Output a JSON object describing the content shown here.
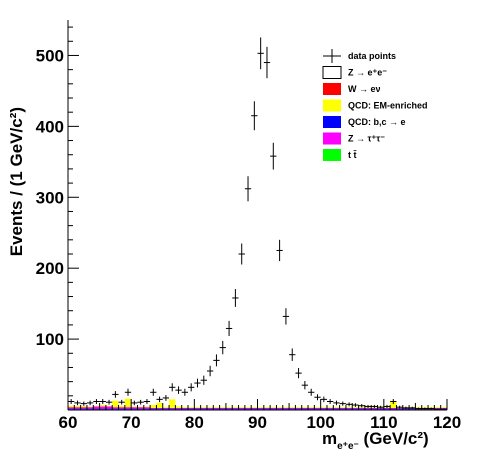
{
  "chart_data": {
    "type": "histogram",
    "x_label_main": "m",
    "x_label_sub": "e⁺e⁻",
    "x_label_unit": " (GeV/c²)",
    "y_label": "Events / (1 GeV/c²)",
    "xlim": [
      60,
      120
    ],
    "ylim": [
      0,
      550
    ],
    "x_ticks": [
      60,
      70,
      80,
      90,
      100,
      110,
      120
    ],
    "y_ticks": [
      100,
      200,
      300,
      400,
      500
    ],
    "grid": false,
    "legend_position": "top-right",
    "legend": [
      {
        "label": "data points",
        "kind": "marker",
        "color": "#000000"
      },
      {
        "label": "Z → e⁺e⁻",
        "kind": "box",
        "color": "#ffffff"
      },
      {
        "label": "W → eν",
        "kind": "box",
        "color": "#ff0000"
      },
      {
        "label": "QCD: EM-enriched",
        "kind": "box",
        "color": "#ffff00"
      },
      {
        "label": "QCD: b,c → e",
        "kind": "box",
        "color": "#0000ff"
      },
      {
        "label": "Z → τ⁺τ⁻",
        "kind": "box",
        "color": "#ff00ff"
      },
      {
        "label": "t t̄",
        "kind": "box",
        "color": "#00ff00"
      }
    ],
    "data_points": {
      "x": [
        60.5,
        61.5,
        62.5,
        63.5,
        64.5,
        65.5,
        66.5,
        67.5,
        68.5,
        69.5,
        70.5,
        71.5,
        72.5,
        73.5,
        74.5,
        75.5,
        76.5,
        77.5,
        78.5,
        79.5,
        80.5,
        81.5,
        82.5,
        83.5,
        84.5,
        85.5,
        86.5,
        87.5,
        88.5,
        89.5,
        90.5,
        91.5,
        92.5,
        93.5,
        94.5,
        95.5,
        96.5,
        97.5,
        98.5,
        99.5,
        100.5,
        101.5,
        102.5,
        103.5,
        104.5,
        105.5,
        106.5,
        107.5,
        108.5,
        109.5,
        110.5,
        111.5,
        112.5,
        113.5,
        114.5,
        115.5,
        116.5,
        117.5,
        118.5,
        119.5
      ],
      "y": [
        12,
        10,
        9,
        10,
        12,
        12,
        11,
        22,
        11,
        25,
        10,
        11,
        12,
        25,
        15,
        17,
        32,
        28,
        25,
        32,
        38,
        42,
        55,
        70,
        88,
        115,
        158,
        220,
        312,
        415,
        503,
        490,
        358,
        225,
        132,
        78,
        52,
        35,
        25,
        18,
        15,
        12,
        10,
        9,
        8,
        7,
        6,
        5,
        5,
        4,
        5,
        12,
        4,
        3,
        3,
        2,
        2,
        2,
        1,
        1
      ],
      "y_err": [
        3.5,
        3.2,
        3.0,
        3.2,
        3.5,
        3.5,
        3.3,
        4.7,
        3.3,
        5.0,
        3.2,
        3.3,
        3.5,
        5.0,
        3.9,
        4.1,
        5.7,
        5.3,
        5.0,
        5.7,
        6.2,
        6.5,
        7.4,
        8.4,
        9.4,
        10.7,
        12.6,
        14.8,
        17.7,
        20.4,
        22.4,
        22.1,
        18.9,
        15.0,
        11.5,
        8.8,
        7.2,
        5.9,
        5.0,
        4.2,
        3.9,
        3.5,
        3.2,
        3.0,
        2.8,
        2.6,
        2.4,
        2.2,
        2.2,
        2.0,
        2.2,
        3.5,
        2.0,
        1.7,
        1.7,
        1.4,
        1.4,
        1.4,
        1.0,
        1.0
      ]
    },
    "background_stack": {
      "x": [
        60.5,
        61.5,
        62.5,
        63.5,
        64.5,
        65.5,
        66.5,
        67.5,
        68.5,
        69.5,
        70.5,
        71.5,
        72.5,
        73.5,
        74.5,
        75.5,
        76.5,
        77.5,
        78.5,
        79.5,
        80.5,
        81.5,
        82.5,
        83.5,
        84.5,
        85.5,
        86.5,
        87.5,
        88.5,
        89.5,
        90.5,
        91.5,
        92.5,
        93.5,
        94.5,
        95.5,
        96.5,
        97.5,
        98.5,
        99.5,
        100.5,
        101.5,
        102.5,
        103.5,
        104.5,
        105.5,
        106.5,
        107.5,
        108.5,
        109.5,
        110.5,
        111.5,
        112.5,
        113.5,
        114.5,
        115.5,
        116.5,
        117.5,
        118.5,
        119.5
      ],
      "W → eν": [
        1,
        1,
        1,
        1,
        1,
        1,
        1,
        1,
        1,
        1,
        1,
        1,
        1,
        1,
        1,
        1,
        1,
        1,
        1,
        1,
        1,
        1,
        1,
        1,
        1,
        1,
        1,
        1,
        1,
        1,
        1,
        1,
        1,
        1,
        1,
        1,
        1,
        1,
        1,
        1,
        1,
        1,
        1,
        1,
        1,
        1,
        1,
        1,
        1,
        1,
        1,
        1,
        1,
        1,
        1,
        1,
        1,
        1,
        1,
        1
      ],
      "QCD: EM-enriched": [
        2,
        2,
        2,
        1,
        1,
        2,
        1,
        9,
        2,
        12,
        1,
        1,
        1,
        4,
        7,
        1,
        12,
        2,
        1,
        1,
        1,
        1,
        1,
        1,
        1,
        1,
        1,
        1,
        1,
        1,
        1,
        1,
        1,
        1,
        1,
        1,
        1,
        1,
        1,
        1,
        1,
        1,
        1,
        1,
        1,
        1,
        1,
        1,
        1,
        1,
        1,
        10,
        1,
        1,
        1,
        1,
        1,
        1,
        1,
        1
      ],
      "QCD: b,c → e": [
        1,
        1,
        1,
        1,
        1,
        1,
        1,
        1,
        1,
        1,
        1,
        1,
        1,
        1,
        1,
        1,
        1,
        1,
        1,
        1,
        1,
        1,
        1,
        1,
        1,
        1,
        1,
        1,
        1,
        1,
        1,
        1,
        1,
        1,
        1,
        1,
        1,
        1,
        1,
        1,
        1,
        1,
        1,
        1,
        1,
        1,
        1,
        1,
        1,
        1,
        1,
        1,
        1,
        1,
        1,
        1,
        1,
        1,
        1,
        1
      ],
      "Z → τ⁺τ⁻": [
        2,
        2,
        2,
        2,
        3,
        3,
        3,
        2,
        2,
        2,
        2,
        2,
        2,
        1,
        1,
        1,
        1,
        1,
        1,
        1,
        1,
        1,
        1,
        1,
        1,
        1,
        1,
        1,
        1,
        1,
        1,
        1,
        1,
        1,
        1,
        1,
        1,
        1,
        1,
        1,
        1,
        1,
        1,
        1,
        1,
        1,
        1,
        1,
        1,
        1,
        1,
        1,
        1,
        1,
        1,
        1,
        1,
        1,
        1,
        1
      ],
      "t t̄": [
        0,
        0,
        0,
        0,
        0,
        0,
        0,
        0,
        0,
        0,
        0,
        0,
        0,
        0,
        0,
        0,
        0,
        0,
        0,
        0,
        0,
        0,
        0,
        0,
        0,
        0,
        0,
        0,
        0,
        0,
        0,
        0,
        0,
        0,
        0,
        0,
        0,
        0,
        0,
        0,
        0,
        0,
        0,
        0,
        0,
        0,
        0,
        0,
        0,
        0,
        0,
        0,
        0,
        0,
        0,
        0,
        0,
        0,
        0,
        0
      ]
    }
  }
}
